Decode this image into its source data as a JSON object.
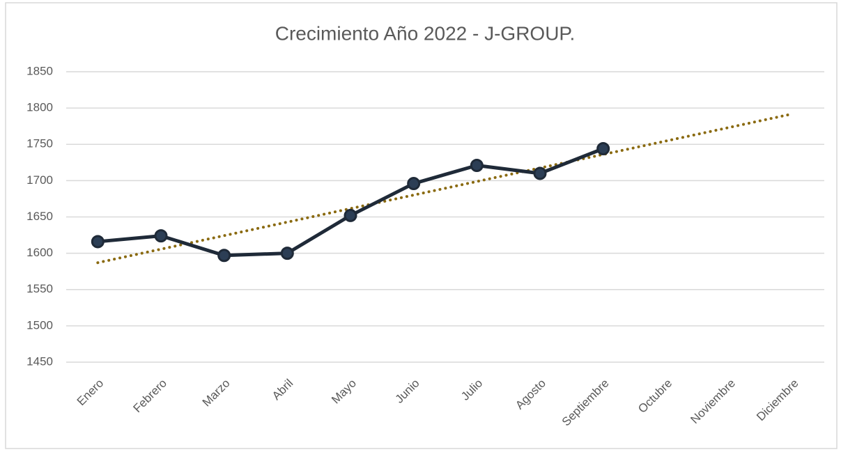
{
  "chart_data": {
    "type": "line",
    "title": "Crecimiento Año 2022 - J-GROUP.",
    "categories": [
      "Enero",
      "Febrero",
      "Marzo",
      "Abril",
      "Mayo",
      "Junio",
      "Julio",
      "Agosto",
      "Septiembre",
      "Octubre",
      "Noviembre",
      "Diciembre"
    ],
    "series": [
      {
        "color": "#1f2a38",
        "values": [
          1616,
          1624,
          1597,
          1600,
          1652,
          1696,
          1721,
          1710,
          1744,
          null,
          null,
          null
        ]
      }
    ],
    "trendline": {
      "color": "#8a6a10",
      "values": [
        1587,
        1792
      ]
    },
    "ylim": [
      1450,
      1850
    ],
    "yticks": [
      1450,
      1500,
      1550,
      1600,
      1650,
      1700,
      1750,
      1800,
      1850
    ],
    "grid": true
  }
}
